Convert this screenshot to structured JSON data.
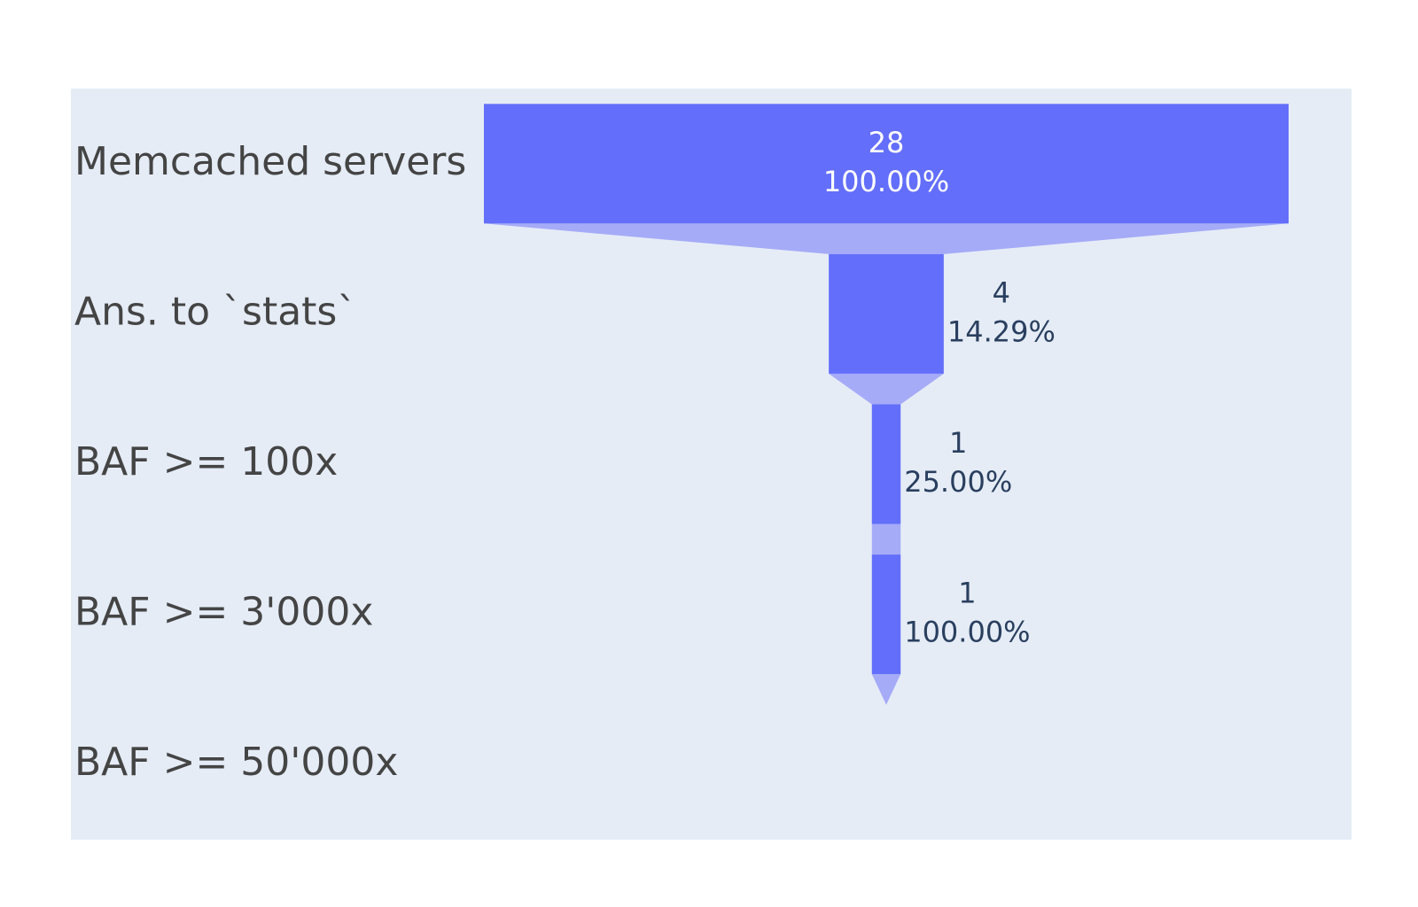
{
  "chart_data": {
    "type": "funnel",
    "categories": [
      "Memcached servers",
      "Ans. to `stats`",
      "BAF >= 100x",
      "BAF >= 3'000x",
      "BAF >= 50'000x"
    ],
    "values": [
      28,
      4,
      1,
      1,
      0
    ],
    "percent_labels": [
      "100.00%",
      "14.29%",
      "25.00%",
      "100.00%",
      ""
    ],
    "value_labels": [
      "28",
      "4",
      "1",
      "1",
      ""
    ],
    "percent_of": "previous",
    "title": "",
    "xlabel": "",
    "ylabel": "",
    "grid": false,
    "colors": {
      "bar": "#636efa",
      "connector": "#a5abf7",
      "plot_background": "#e5ecf6",
      "paper_background": "#ffffff",
      "label_inside": "#ffffff",
      "label_outside": "#2a3f5f",
      "stage_label": "#444444"
    }
  }
}
